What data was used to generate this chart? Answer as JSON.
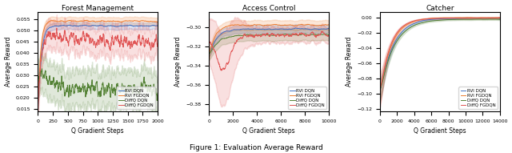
{
  "figsize": [
    6.4,
    1.91
  ],
  "dpi": 100,
  "caption": "Figure 1: Evaluation Average Reward",
  "forest": {
    "title": "Forest Management",
    "xlabel": "Q Gradient Steps",
    "ylabel": "Average Reward",
    "xlim": [
      0,
      2000
    ],
    "xticks": [
      0,
      250,
      500,
      750,
      1000,
      1250,
      1500,
      1750,
      2000
    ],
    "ylim": [
      0.014,
      0.058
    ]
  },
  "access": {
    "title": "Access Control",
    "xlabel": "Q Gradient Steps",
    "ylabel": "Average Reward",
    "xlim": [
      0,
      10000
    ],
    "xticks": [
      0,
      2000,
      4000,
      6000,
      8000,
      10000
    ],
    "ylim": [
      -0.295,
      -0.295
    ]
  },
  "catcher": {
    "title": "Catcher",
    "xlabel": "Q Gradient Steps",
    "ylabel": "Average Reward",
    "xlim": [
      0,
      14000
    ],
    "xticks": [
      0,
      2000,
      4000,
      6000,
      8000,
      10000,
      12000,
      14000
    ],
    "ylim": [
      -0.1,
      0.002
    ]
  },
  "legend_labels": [
    "RVI DQN",
    "RVI FGDQN",
    "DiffQ DQN",
    "DiffQ FGDQN"
  ],
  "colors": [
    "#4472c4",
    "#ed7d31",
    "#548235",
    "#e05555"
  ]
}
